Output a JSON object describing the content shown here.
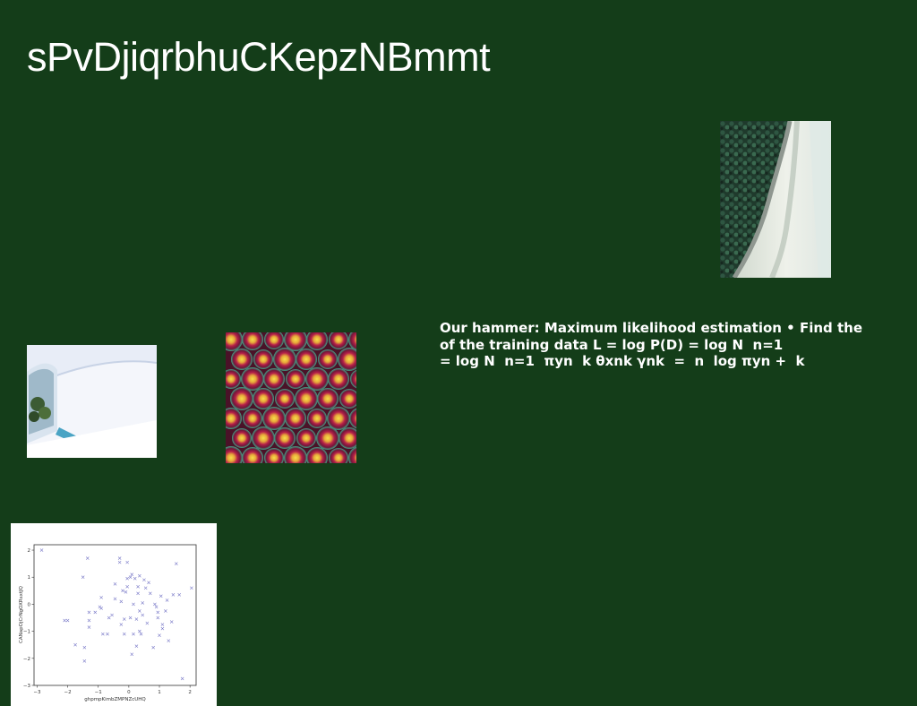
{
  "slide": {
    "title": "sPvDjiqrbhuCKepzNBmmt",
    "background": "#143d19",
    "body_lines": [
      "Our hammer: Maximum likelihood estimation • Find the",
      "of the training data L = log P(D) = log N ￼ n=1",
      "= log N ￼ n=1 ￼ πyn ￼ k θxnk γnk ￼ = ￼ n ￼ log πyn + ￼ k"
    ]
  },
  "images": [
    {
      "name": "aerial-coast-road-photo"
    },
    {
      "name": "white-interior-room-photo"
    },
    {
      "name": "coral-polyps-photo"
    }
  ],
  "chart_data": {
    "type": "scatter",
    "title": "",
    "xlabel": "ghpmpKimbZMPNZcUHQ",
    "ylabel": "CANapOjCrNgOXRsxtJQ",
    "xlim": [
      -3.1,
      2.2
    ],
    "ylim": [
      -3.0,
      2.2
    ],
    "xticks": [
      -3,
      -2,
      -1,
      0,
      1,
      2
    ],
    "yticks": [
      -3,
      -2,
      -1,
      0,
      1,
      2
    ],
    "marker": "x",
    "color": "#7a7ac8",
    "grid": false,
    "points": [
      [
        -2.85,
        2.0
      ],
      [
        -2.1,
        -0.6
      ],
      [
        -2.0,
        -0.6
      ],
      [
        -1.75,
        -1.5
      ],
      [
        -1.5,
        1.0
      ],
      [
        -1.45,
        -1.6
      ],
      [
        -1.45,
        -2.1
      ],
      [
        -1.35,
        1.7
      ],
      [
        -1.3,
        -0.3
      ],
      [
        -1.3,
        -0.6
      ],
      [
        -1.3,
        -0.85
      ],
      [
        -1.1,
        -0.3
      ],
      [
        -0.95,
        -0.1
      ],
      [
        -0.9,
        -0.15
      ],
      [
        -0.9,
        0.25
      ],
      [
        -0.85,
        -1.1
      ],
      [
        -0.7,
        -1.1
      ],
      [
        -0.65,
        -0.5
      ],
      [
        -0.55,
        -0.4
      ],
      [
        -0.45,
        0.2
      ],
      [
        -0.45,
        0.75
      ],
      [
        -0.3,
        1.7
      ],
      [
        -0.3,
        1.55
      ],
      [
        -0.25,
        -0.75
      ],
      [
        -0.25,
        0.1
      ],
      [
        -0.2,
        0.5
      ],
      [
        -0.15,
        -0.55
      ],
      [
        -0.15,
        -1.1
      ],
      [
        -0.1,
        0.45
      ],
      [
        -0.05,
        0.65
      ],
      [
        -0.05,
        0.95
      ],
      [
        -0.05,
        1.55
      ],
      [
        0.05,
        -0.5
      ],
      [
        0.05,
        1.0
      ],
      [
        0.1,
        1.1
      ],
      [
        0.1,
        -1.85
      ],
      [
        0.15,
        0.0
      ],
      [
        0.15,
        -1.1
      ],
      [
        0.2,
        0.95
      ],
      [
        0.25,
        -0.55
      ],
      [
        0.25,
        -1.55
      ],
      [
        0.3,
        0.4
      ],
      [
        0.3,
        0.65
      ],
      [
        0.35,
        1.05
      ],
      [
        0.35,
        -0.25
      ],
      [
        0.35,
        -1.0
      ],
      [
        0.4,
        -1.1
      ],
      [
        0.45,
        0.05
      ],
      [
        0.45,
        -0.4
      ],
      [
        0.5,
        0.9
      ],
      [
        0.55,
        0.6
      ],
      [
        0.6,
        -0.7
      ],
      [
        0.65,
        0.8
      ],
      [
        0.7,
        0.4
      ],
      [
        0.8,
        -1.6
      ],
      [
        0.85,
        0.0
      ],
      [
        0.9,
        -0.1
      ],
      [
        0.95,
        -0.3
      ],
      [
        0.95,
        -0.5
      ],
      [
        1.0,
        -1.15
      ],
      [
        1.05,
        0.3
      ],
      [
        1.1,
        -0.75
      ],
      [
        1.1,
        -0.9
      ],
      [
        1.2,
        -0.25
      ],
      [
        1.25,
        0.15
      ],
      [
        1.3,
        -1.35
      ],
      [
        1.4,
        -0.65
      ],
      [
        1.45,
        0.35
      ],
      [
        1.55,
        1.5
      ],
      [
        1.65,
        0.35
      ],
      [
        1.75,
        -2.75
      ],
      [
        2.05,
        0.6
      ]
    ]
  }
}
